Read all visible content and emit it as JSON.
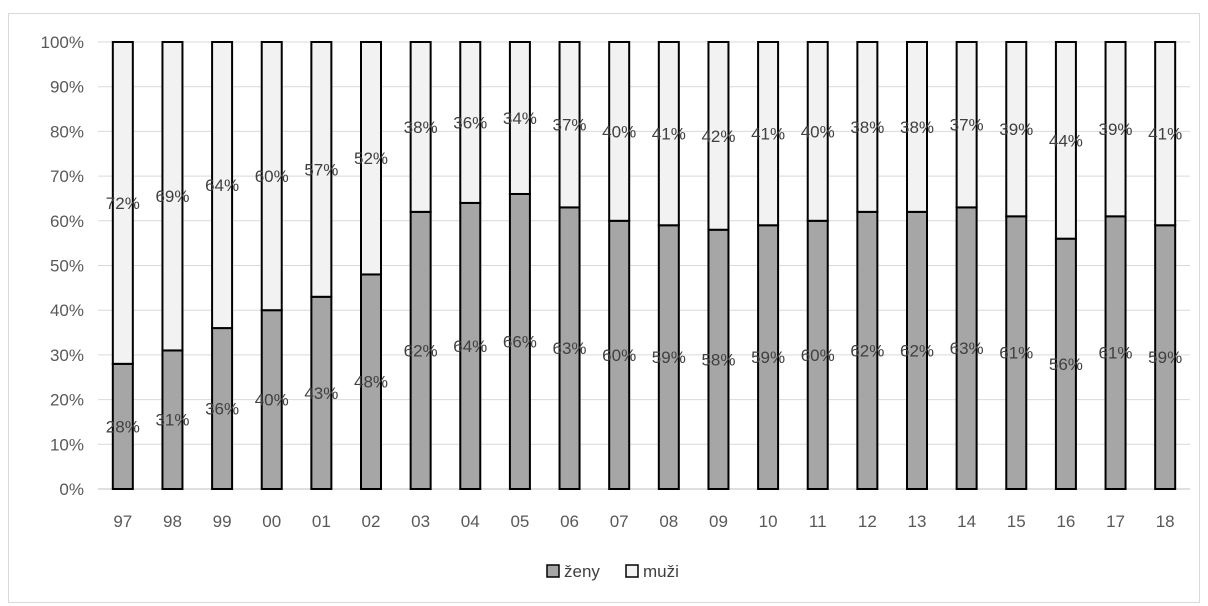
{
  "chart_data": {
    "type": "bar",
    "stacked": true,
    "percent_stacked": true,
    "categories": [
      "97",
      "98",
      "99",
      "00",
      "01",
      "02",
      "03",
      "04",
      "05",
      "06",
      "07",
      "08",
      "09",
      "10",
      "11",
      "12",
      "13",
      "14",
      "15",
      "16",
      "17",
      "18"
    ],
    "series": [
      {
        "name": "ženy",
        "color": "#a6a6a6",
        "values": [
          28,
          31,
          36,
          40,
          43,
          48,
          62,
          64,
          66,
          63,
          60,
          59,
          58,
          59,
          60,
          62,
          62,
          63,
          61,
          56,
          61,
          59
        ]
      },
      {
        "name": "muži",
        "color": "#f2f2f2",
        "values": [
          72,
          69,
          64,
          60,
          57,
          52,
          38,
          36,
          34,
          37,
          40,
          41,
          42,
          41,
          40,
          38,
          38,
          37,
          39,
          44,
          39,
          41
        ]
      }
    ],
    "data_label_suffix": "%",
    "y_ticks": [
      "0%",
      "10%",
      "20%",
      "30%",
      "40%",
      "50%",
      "60%",
      "70%",
      "80%",
      "90%",
      "100%"
    ],
    "ylim": [
      0,
      100
    ],
    "grid": true,
    "legend_position": "bottom",
    "title": "",
    "xlabel": "",
    "ylabel": ""
  }
}
